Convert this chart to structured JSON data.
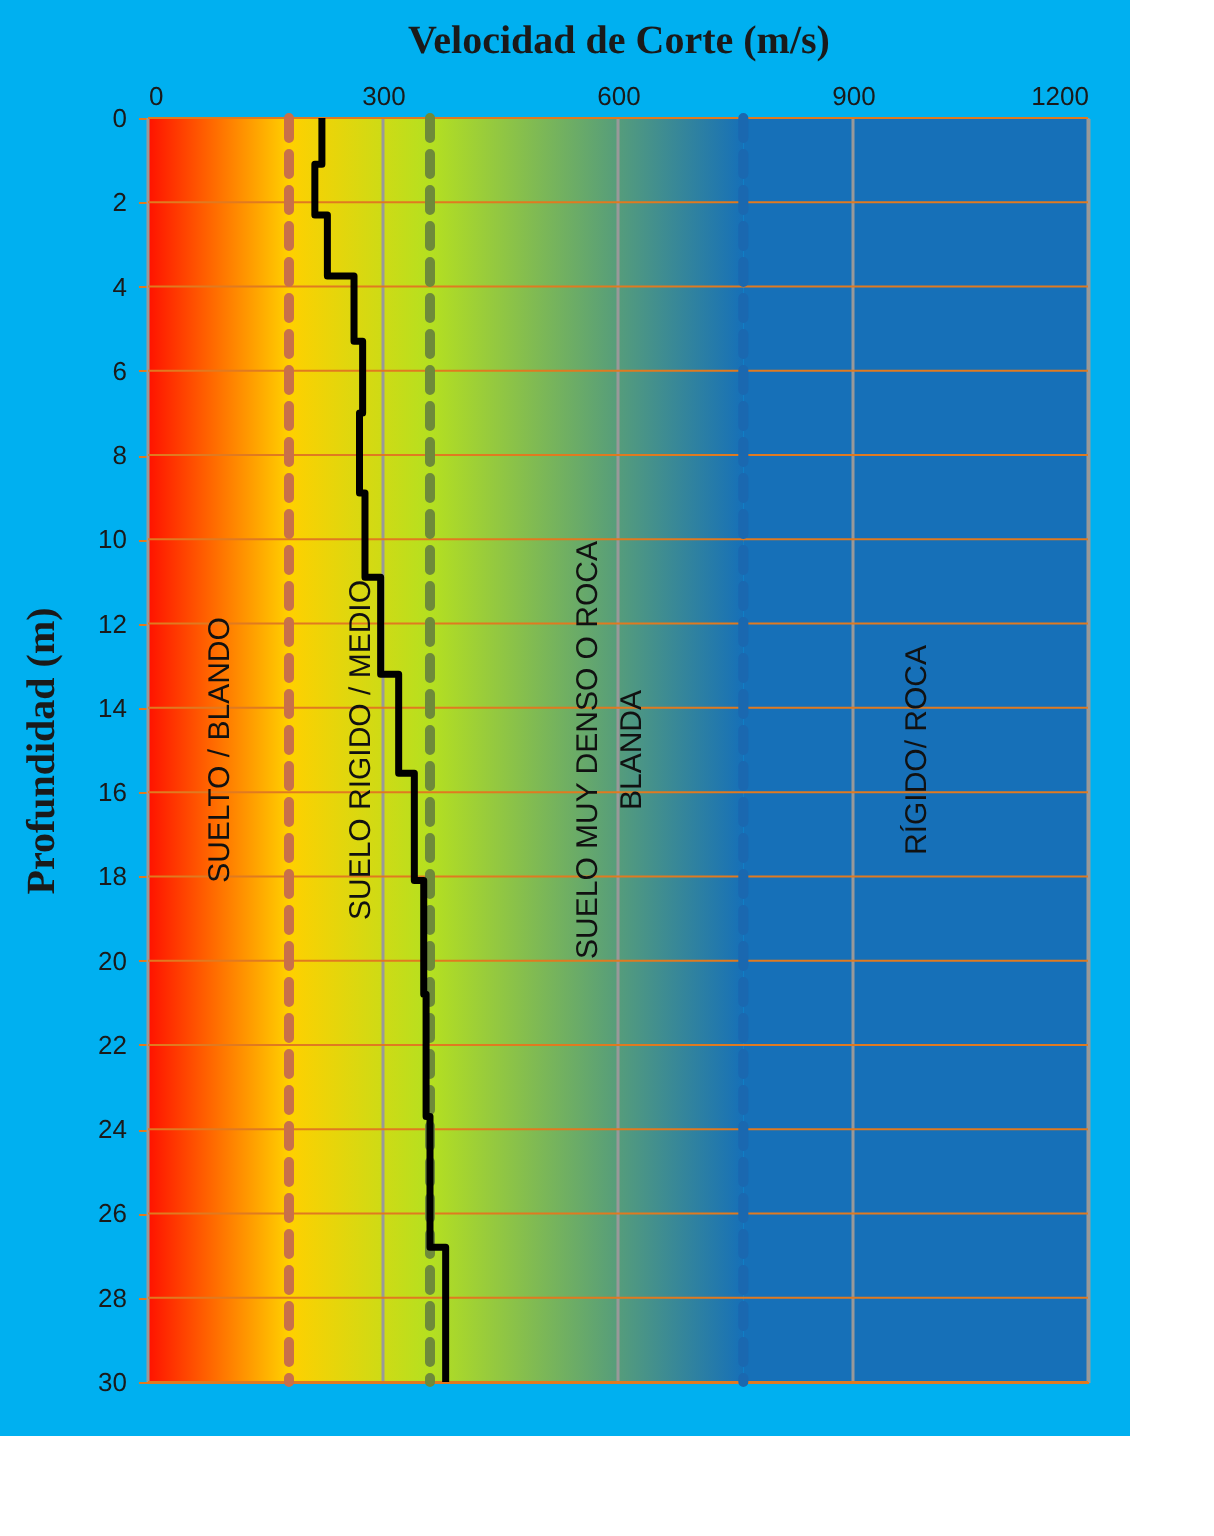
{
  "chart_data": {
    "type": "line",
    "xlabel": "Velocidad de Corte (m/s)",
    "ylabel": "Profundidad (m)",
    "xlim": [
      0,
      1200
    ],
    "xticks": [
      0,
      300,
      600,
      900,
      1200
    ],
    "ylim": [
      30,
      0
    ],
    "yticks": [
      0,
      2,
      4,
      6,
      8,
      10,
      12,
      14,
      16,
      18,
      20,
      22,
      24,
      26,
      28,
      30
    ],
    "grid": true,
    "marker": "none",
    "line_style": "solid",
    "series": [
      {
        "color": "#000000",
        "x": [
          222,
          222,
          213,
          213,
          229,
          229,
          263,
          263,
          274,
          274,
          270,
          270,
          277,
          277,
          297,
          297,
          320,
          320,
          340,
          340,
          352,
          352,
          355,
          355,
          360,
          360,
          380,
          380
        ],
        "values": [
          0,
          1.1,
          1.1,
          2.3,
          2.3,
          3.75,
          3.75,
          5.3,
          5.3,
          7.0,
          7.0,
          8.9,
          8.9,
          10.9,
          10.9,
          13.2,
          13.2,
          15.55,
          15.55,
          18.1,
          18.1,
          20.8,
          20.8,
          23.7,
          23.7,
          26.8,
          26.8,
          30
        ]
      }
    ],
    "bands": [
      {
        "axis": "x",
        "from": 0,
        "to": 180,
        "label": "SUELTO / BLANDO",
        "color": "#ff1200"
      },
      {
        "axis": "x",
        "from": 180,
        "to": 360,
        "label": "SUELO RIGIDO / MEDIO",
        "color": "#ffd000"
      },
      {
        "axis": "x",
        "from": 360,
        "to": 760,
        "label": "SUELO MUY DENSO O ROCA BLANDA",
        "color": "#b5e020"
      },
      {
        "axis": "x",
        "from": 760,
        "to": 1200,
        "label": "RÍGIDO/ ROCA",
        "color": "#1670b8"
      }
    ],
    "ref_lines": [
      {
        "axis": "x",
        "value": 180,
        "color": "#c8704a",
        "line_style": "dashed"
      },
      {
        "axis": "x",
        "value": 360,
        "color": "#6e8a3a",
        "line_style": "dashed"
      },
      {
        "axis": "x",
        "value": 760,
        "color": "#1a68b0",
        "line_style": "dashed"
      }
    ]
  }
}
